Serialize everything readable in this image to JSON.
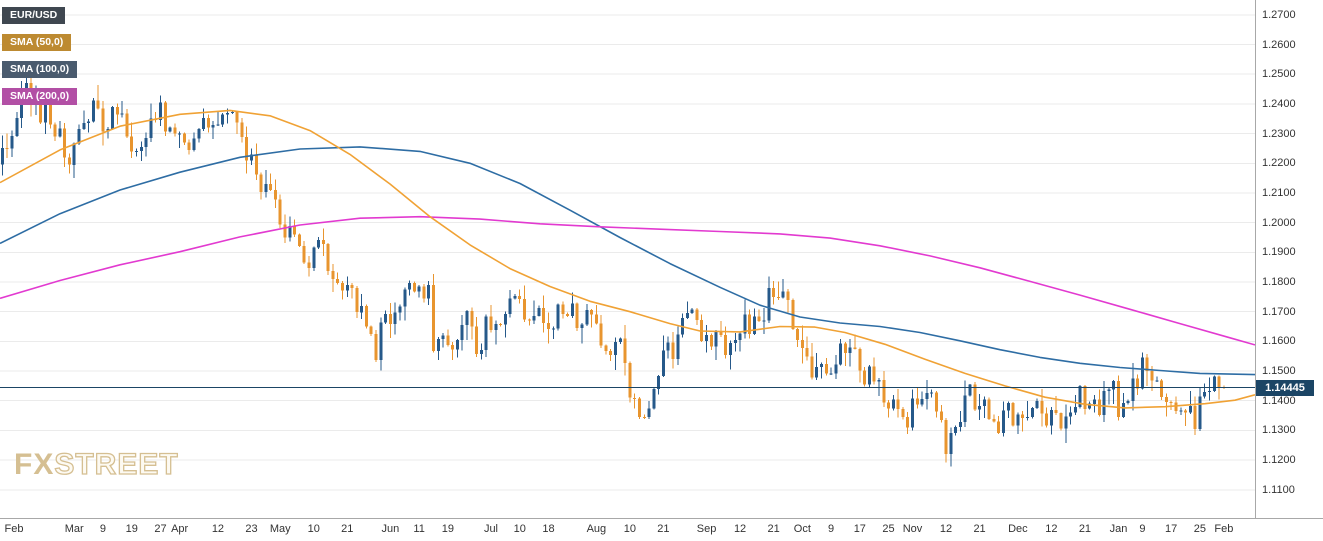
{
  "chart_data": {
    "type": "candlestick",
    "symbol": "EUR/USD",
    "last_price": "1.14445",
    "slots": 262,
    "first_open": 1.2195,
    "wick_seed": 42,
    "y_axis": {
      "min": 1.11,
      "max": 1.27,
      "step": 0.01,
      "labels": [
        "1.2700",
        "1.2600",
        "1.2500",
        "1.2400",
        "1.2300",
        "1.2200",
        "1.2100",
        "1.2000",
        "1.1900",
        "1.1800",
        "1.1700",
        "1.1600",
        "1.1500",
        "1.1400",
        "1.1300",
        "1.1200",
        "1.1100"
      ]
    },
    "x_ticks": [
      {
        "label": "Feb",
        "i": 0
      },
      {
        "label": "Mar",
        "i": 15
      },
      {
        "label": "9",
        "i": 21
      },
      {
        "label": "19",
        "i": 27
      },
      {
        "label": "27",
        "i": 33
      },
      {
        "label": "Apr",
        "i": 37
      },
      {
        "label": "12",
        "i": 45
      },
      {
        "label": "23",
        "i": 52
      },
      {
        "label": "May",
        "i": 58
      },
      {
        "label": "10",
        "i": 65
      },
      {
        "label": "21",
        "i": 72
      },
      {
        "label": "Jun",
        "i": 81
      },
      {
        "label": "11",
        "i": 87
      },
      {
        "label": "19",
        "i": 93
      },
      {
        "label": "Jul",
        "i": 102
      },
      {
        "label": "10",
        "i": 108
      },
      {
        "label": "18",
        "i": 114
      },
      {
        "label": "Aug",
        "i": 124
      },
      {
        "label": "10",
        "i": 131
      },
      {
        "label": "21",
        "i": 138
      },
      {
        "label": "Sep",
        "i": 147
      },
      {
        "label": "12",
        "i": 154
      },
      {
        "label": "21",
        "i": 161
      },
      {
        "label": "Oct",
        "i": 167
      },
      {
        "label": "9",
        "i": 173
      },
      {
        "label": "17",
        "i": 179
      },
      {
        "label": "25",
        "i": 185
      },
      {
        "label": "Nov",
        "i": 190
      },
      {
        "label": "12",
        "i": 197
      },
      {
        "label": "21",
        "i": 204
      },
      {
        "label": "Dec",
        "i": 212
      },
      {
        "label": "12",
        "i": 219
      },
      {
        "label": "21",
        "i": 226
      },
      {
        "label": "Jan",
        "i": 233
      },
      {
        "label": "9",
        "i": 238
      },
      {
        "label": "17",
        "i": 244
      },
      {
        "label": "25",
        "i": 250
      },
      {
        "label": "Feb",
        "i": 255
      }
    ],
    "closes": [
      1.2252,
      1.225,
      1.2292,
      1.2352,
      1.245,
      1.247,
      1.2405,
      1.241,
      1.2337,
      1.24,
      1.233,
      1.229,
      1.2317,
      1.222,
      1.2195,
      1.2266,
      1.2316,
      1.2336,
      1.234,
      1.2412,
      1.2385,
      1.2307,
      1.2315,
      1.239,
      1.2365,
      1.2368,
      1.229,
      1.224,
      1.2242,
      1.2255,
      1.2285,
      1.235,
      1.2345,
      1.2405,
      1.2307,
      1.2321,
      1.23,
      1.2301,
      1.227,
      1.2245,
      1.2284,
      1.2315,
      1.2352,
      1.232,
      1.2329,
      1.233,
      1.2365,
      1.237,
      1.2373,
      1.2337,
      1.2288,
      1.2209,
      1.223,
      1.2162,
      1.2103,
      1.213,
      1.211,
      1.2078,
      1.1993,
      1.195,
      1.1988,
      1.196,
      1.1922,
      1.1865,
      1.1847,
      1.1916,
      1.1941,
      1.1928,
      1.1837,
      1.181,
      1.1796,
      1.1771,
      1.179,
      1.178,
      1.1698,
      1.172,
      1.165,
      1.1625,
      1.1538,
      1.1664,
      1.1693,
      1.1659,
      1.1697,
      1.1717,
      1.1775,
      1.1797,
      1.1768,
      1.1785,
      1.1744,
      1.179,
      1.1567,
      1.1608,
      1.162,
      1.1588,
      1.1573,
      1.1604,
      1.1655,
      1.1703,
      1.165,
      1.1558,
      1.1571,
      1.1684,
      1.1638,
      1.1659,
      1.1657,
      1.1692,
      1.1745,
      1.1753,
      1.1743,
      1.1674,
      1.167,
      1.1686,
      1.1712,
      1.1662,
      1.1642,
      1.1643,
      1.1724,
      1.1693,
      1.1685,
      1.1728,
      1.1645,
      1.1657,
      1.1705,
      1.1691,
      1.166,
      1.1586,
      1.1568,
      1.1554,
      1.1598,
      1.161,
      1.1527,
      1.141,
      1.1408,
      1.1346,
      1.1345,
      1.1374,
      1.144,
      1.1484,
      1.157,
      1.1596,
      1.154,
      1.1623,
      1.1679,
      1.1695,
      1.1707,
      1.1672,
      1.1601,
      1.1621,
      1.1583,
      1.1631,
      1.1622,
      1.1554,
      1.1595,
      1.1605,
      1.1627,
      1.169,
      1.1625,
      1.1683,
      1.1669,
      1.1671,
      1.1779,
      1.175,
      1.1748,
      1.1768,
      1.174,
      1.1641,
      1.1604,
      1.1578,
      1.1549,
      1.1478,
      1.1514,
      1.1523,
      1.1492,
      1.1492,
      1.1522,
      1.1593,
      1.1561,
      1.1579,
      1.1575,
      1.1502,
      1.1454,
      1.1515,
      1.1465,
      1.147,
      1.1394,
      1.1374,
      1.1404,
      1.1373,
      1.1345,
      1.131,
      1.1407,
      1.1388,
      1.1406,
      1.1426,
      1.1427,
      1.1363,
      1.1335,
      1.122,
      1.1291,
      1.1311,
      1.1328,
      1.1417,
      1.1454,
      1.137,
      1.1383,
      1.1405,
      1.1338,
      1.133,
      1.1292,
      1.1367,
      1.1392,
      1.1317,
      1.1354,
      1.1342,
      1.1346,
      1.1376,
      1.1399,
      1.1357,
      1.1317,
      1.1369,
      1.1358,
      1.1306,
      1.1347,
      1.1361,
      1.1379,
      1.1449,
      1.1373,
      1.139,
      1.1405,
      1.1352,
      1.1433,
      1.1438,
      1.1467,
      1.1346,
      1.1392,
      1.1399,
      1.1475,
      1.1441,
      1.1545,
      1.15,
      1.1468,
      1.1469,
      1.1413,
      1.1395,
      1.1394,
      1.1365,
      1.1367,
      1.136,
      1.1383,
      1.1305,
      1.1414,
      1.143,
      1.1433,
      1.1481,
      1.1446,
      1.14445
    ],
    "sma50": [
      [
        0,
        1.2135
      ],
      [
        60,
        1.2245
      ],
      [
        120,
        1.2325
      ],
      [
        180,
        1.2365
      ],
      [
        230,
        1.2378
      ],
      [
        270,
        1.236
      ],
      [
        310,
        1.231
      ],
      [
        350,
        1.223
      ],
      [
        390,
        1.213
      ],
      [
        430,
        1.202
      ],
      [
        470,
        1.1925
      ],
      [
        510,
        1.1845
      ],
      [
        550,
        1.1785
      ],
      [
        590,
        1.1735
      ],
      [
        630,
        1.17
      ],
      [
        670,
        1.166
      ],
      [
        700,
        1.1635
      ],
      [
        740,
        1.1632
      ],
      [
        780,
        1.165
      ],
      [
        815,
        1.1648
      ],
      [
        845,
        1.163
      ],
      [
        885,
        1.159
      ],
      [
        925,
        1.154
      ],
      [
        965,
        1.1492
      ],
      [
        1005,
        1.145
      ],
      [
        1045,
        1.1412
      ],
      [
        1085,
        1.1388
      ],
      [
        1125,
        1.1376
      ],
      [
        1165,
        1.138
      ],
      [
        1205,
        1.139
      ],
      [
        1235,
        1.1402
      ],
      [
        1255,
        1.142
      ]
    ],
    "sma100": [
      [
        0,
        1.193
      ],
      [
        60,
        1.203
      ],
      [
        120,
        1.211
      ],
      [
        180,
        1.217
      ],
      [
        240,
        1.222
      ],
      [
        300,
        1.2248
      ],
      [
        360,
        1.2255
      ],
      [
        420,
        1.224
      ],
      [
        470,
        1.22
      ],
      [
        520,
        1.2132
      ],
      [
        570,
        1.2042
      ],
      [
        620,
        1.195
      ],
      [
        670,
        1.1862
      ],
      [
        720,
        1.1782
      ],
      [
        760,
        1.1722
      ],
      [
        800,
        1.1682
      ],
      [
        840,
        1.1662
      ],
      [
        880,
        1.165
      ],
      [
        920,
        1.163
      ],
      [
        960,
        1.1602
      ],
      [
        1000,
        1.1572
      ],
      [
        1040,
        1.1546
      ],
      [
        1080,
        1.1526
      ],
      [
        1120,
        1.1512
      ],
      [
        1160,
        1.1502
      ],
      [
        1200,
        1.1492
      ],
      [
        1255,
        1.1488
      ]
    ],
    "sma200": [
      [
        0,
        1.1745
      ],
      [
        60,
        1.1805
      ],
      [
        120,
        1.1858
      ],
      [
        180,
        1.1902
      ],
      [
        240,
        1.1952
      ],
      [
        300,
        1.1992
      ],
      [
        360,
        1.2015
      ],
      [
        420,
        1.202
      ],
      [
        480,
        1.2012
      ],
      [
        540,
        1.1996
      ],
      [
        600,
        1.1986
      ],
      [
        660,
        1.1978
      ],
      [
        720,
        1.197
      ],
      [
        780,
        1.1962
      ],
      [
        830,
        1.1948
      ],
      [
        880,
        1.1922
      ],
      [
        930,
        1.1888
      ],
      [
        980,
        1.1848
      ],
      [
        1030,
        1.1802
      ],
      [
        1080,
        1.1756
      ],
      [
        1130,
        1.1708
      ],
      [
        1180,
        1.166
      ],
      [
        1230,
        1.1612
      ],
      [
        1255,
        1.1588
      ]
    ]
  },
  "legend": {
    "items": [
      {
        "label": "EUR/USD",
        "bg": "#3f4750"
      },
      {
        "label": "SMA (50,0)",
        "bg": "#bd8a31"
      },
      {
        "label": "SMA (100,0)",
        "bg": "#4a5b6e"
      },
      {
        "label": "SMA (200,0)",
        "bg": "#b24fa5"
      }
    ]
  },
  "watermark": {
    "fx": "FX",
    "street": "STREET"
  },
  "colors": {
    "background": "#ffffff",
    "grid": "#ebebeb",
    "axis_line": "#a8a8a8",
    "axis_text": "#333333",
    "candle_up": "#26598a",
    "candle_down": "#e8952f",
    "sma50": "#f0a235",
    "sma100": "#2e6da4",
    "sma200": "#e23ad0",
    "price_line": "#1b4565",
    "price_tag_bg": "#1b4565",
    "watermark": "#d5bf92"
  }
}
